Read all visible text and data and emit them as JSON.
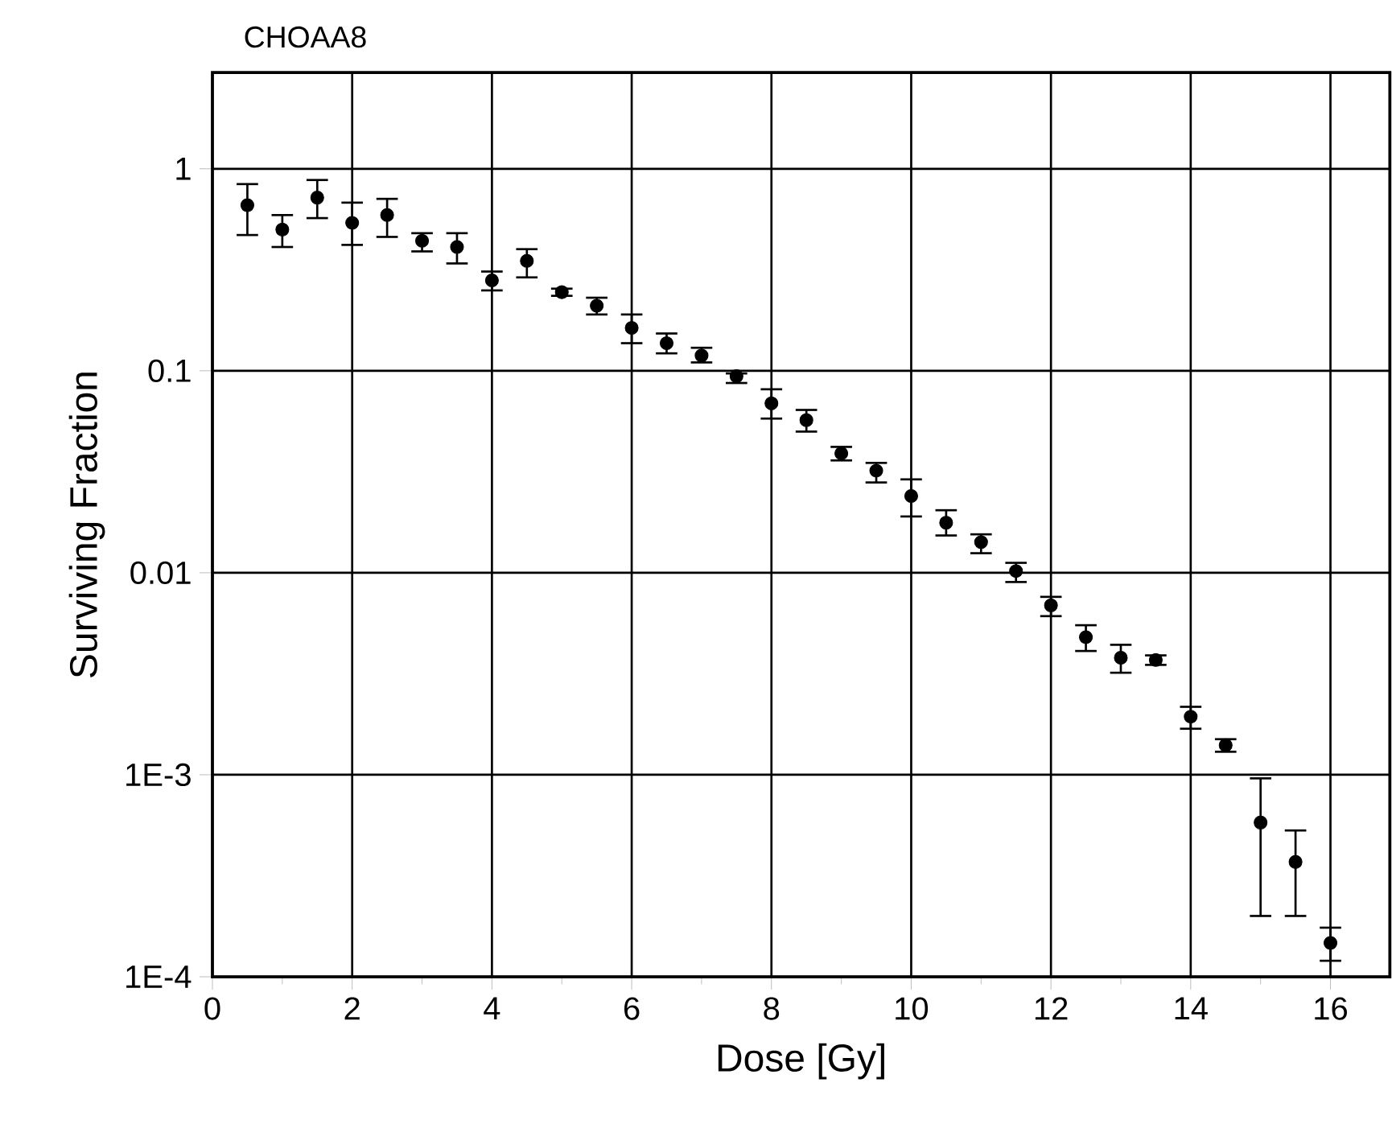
{
  "chart_data": {
    "type": "scatter",
    "title": "CHOAA8",
    "xlabel": "Dose [Gy]",
    "ylabel": "Surviving Fraction",
    "x": [
      0.5,
      1.0,
      1.5,
      2.0,
      2.5,
      3.0,
      3.5,
      4.0,
      4.5,
      5.0,
      5.5,
      6.0,
      6.5,
      7.0,
      7.5,
      8.0,
      8.5,
      9.0,
      9.5,
      10.0,
      10.5,
      11.0,
      11.5,
      12.0,
      12.5,
      13.0,
      13.5,
      14.0,
      14.5,
      15.0,
      15.5,
      16.0
    ],
    "series": [
      {
        "color": "#000000",
        "values": [
          0.66,
          0.5,
          0.72,
          0.54,
          0.59,
          0.44,
          0.41,
          0.28,
          0.35,
          0.245,
          0.21,
          0.163,
          0.137,
          0.119,
          0.094,
          0.069,
          0.057,
          0.039,
          0.032,
          0.024,
          0.0177,
          0.0142,
          0.0102,
          0.0069,
          0.0048,
          0.0038,
          0.0037,
          0.00194,
          0.0014,
          0.00058,
          0.00037,
          0.000147
        ],
        "errors": [
          [
            0.47,
            0.84
          ],
          [
            0.41,
            0.59
          ],
          [
            0.57,
            0.88
          ],
          [
            0.42,
            0.68
          ],
          [
            0.46,
            0.71
          ],
          [
            0.39,
            0.48
          ],
          [
            0.34,
            0.48
          ],
          [
            0.25,
            0.31
          ],
          [
            0.29,
            0.4
          ],
          [
            0.235,
            0.255
          ],
          [
            0.19,
            0.23
          ],
          [
            0.137,
            0.19
          ],
          [
            0.122,
            0.153
          ],
          [
            0.11,
            0.13
          ],
          [
            0.087,
            0.097
          ],
          [
            0.058,
            0.081
          ],
          [
            0.05,
            0.064
          ],
          [
            0.036,
            0.042
          ],
          [
            0.028,
            0.035
          ],
          [
            0.019,
            0.029
          ],
          [
            0.0153,
            0.0204
          ],
          [
            0.0125,
            0.0155
          ],
          [
            0.009,
            0.0112
          ],
          [
            0.0061,
            0.0076
          ],
          [
            0.0041,
            0.0055
          ],
          [
            0.0032,
            0.0044
          ],
          [
            0.0035,
            0.0039
          ],
          [
            0.00169,
            0.00217
          ],
          [
            0.0013,
            0.0015
          ],
          [
            0.0002,
            0.00096
          ],
          [
            0.0002,
            0.00053
          ],
          [
            0.00012,
            0.000175
          ]
        ]
      }
    ],
    "log": "y",
    "grid": true,
    "xlim": [
      0,
      16.85
    ],
    "ylim": [
      0.0001,
      3
    ],
    "xticks": [
      0,
      2,
      4,
      6,
      8,
      10,
      12,
      14,
      16
    ],
    "yticks": [
      {
        "value": 1,
        "label": "1"
      },
      {
        "value": 0.1,
        "label": "0.1"
      },
      {
        "value": 0.01,
        "label": "0.01"
      },
      {
        "value": 0.001,
        "label": "1E-3"
      },
      {
        "value": 0.0001,
        "label": "1E-4"
      }
    ]
  }
}
